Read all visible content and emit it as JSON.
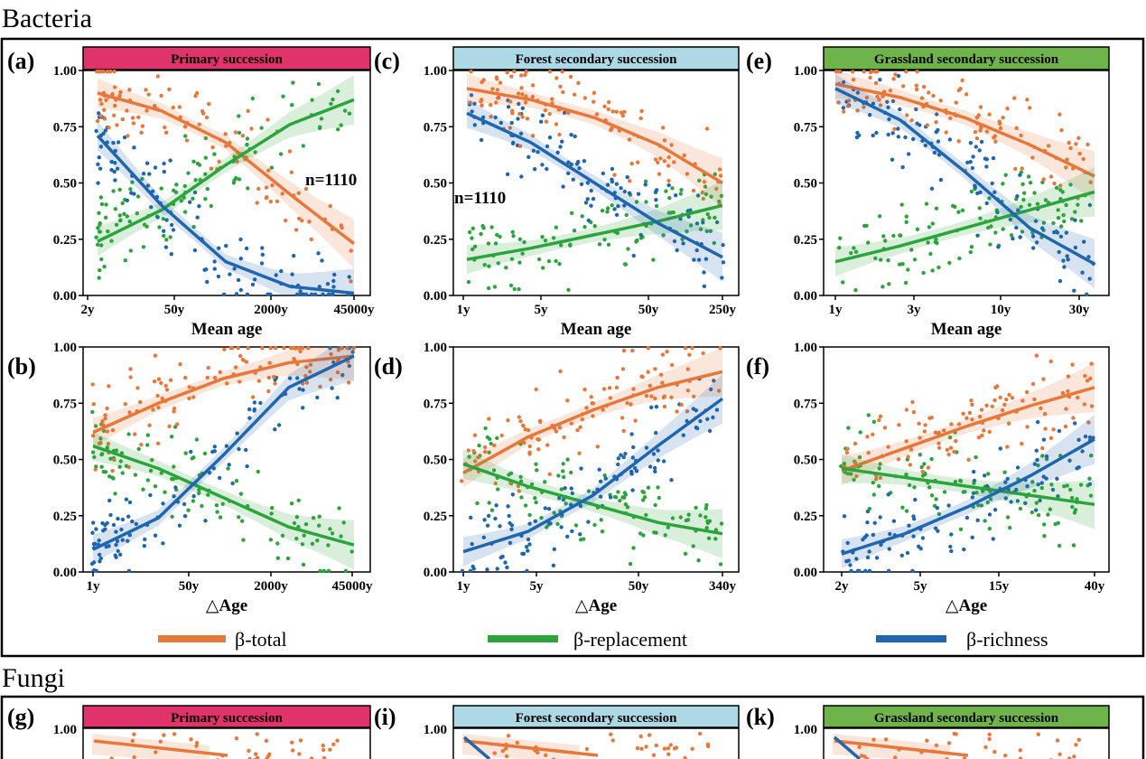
{
  "sections": {
    "bacteria": "Bacteria",
    "fungi": "Fungi"
  },
  "colors": {
    "total": "#e8773a",
    "replacement": "#2ca43c",
    "richness": "#1f66ae",
    "primary": "#e0336b",
    "forest": "#add8e6",
    "grassland": "#6fb44a"
  },
  "legend": [
    {
      "key": "total",
      "label": "β-total"
    },
    {
      "key": "replacement",
      "label": "β-replacement"
    },
    {
      "key": "richness",
      "label": "β-richness"
    }
  ],
  "chart_data": [
    {
      "type": "scatter",
      "panel": "(a)",
      "strip": "Primary succession",
      "strip_color": "primary",
      "xlabel": "Mean age",
      "ylabel": "",
      "annotation": "n=1110",
      "x_scale": "log",
      "xticks": [
        "2y",
        "50y",
        "2000y",
        "45000y"
      ],
      "xtick_values": [
        2,
        50,
        2000,
        45000
      ],
      "ylim": [
        0,
        1
      ],
      "yticks": [
        "0.00",
        "0.25",
        "0.50",
        "0.75",
        "1.00"
      ],
      "fit_range": [
        2.5,
        45000
      ],
      "series": [
        {
          "key": "total",
          "fit": [
            0.9,
            0.82,
            0.68,
            0.45,
            0.23
          ]
        },
        {
          "key": "replacement",
          "fit": [
            0.24,
            0.38,
            0.58,
            0.76,
            0.87
          ]
        },
        {
          "key": "richness",
          "fit": [
            0.71,
            0.4,
            0.15,
            0.04,
            0.01
          ]
        }
      ]
    },
    {
      "type": "scatter",
      "panel": "(c)",
      "strip": "Forest secondary succession",
      "strip_color": "forest",
      "xlabel": "Mean age",
      "ylabel": "",
      "annotation": "n=1110",
      "x_scale": "log",
      "xticks": [
        "1y",
        "5y",
        "50y",
        "250y"
      ],
      "xtick_values": [
        1,
        5,
        50,
        250
      ],
      "ylim": [
        0,
        1
      ],
      "yticks": [
        "0.00",
        "0.25",
        "0.50",
        "0.75",
        "1.00"
      ],
      "fit_range": [
        1,
        250
      ],
      "series": [
        {
          "key": "total",
          "fit": [
            0.92,
            0.87,
            0.79,
            0.67,
            0.5
          ]
        },
        {
          "key": "replacement",
          "fit": [
            0.16,
            0.21,
            0.27,
            0.33,
            0.4
          ]
        },
        {
          "key": "richness",
          "fit": [
            0.81,
            0.68,
            0.5,
            0.32,
            0.17
          ]
        }
      ]
    },
    {
      "type": "scatter",
      "panel": "(e)",
      "strip": "Grassland secondary succession",
      "strip_color": "grassland",
      "xlabel": "Mean age",
      "ylabel": "",
      "annotation": "",
      "x_scale": "log",
      "xticks": [
        "1y",
        "3y",
        "10y",
        "30y"
      ],
      "xtick_values": [
        1,
        3,
        10,
        30
      ],
      "ylim": [
        0,
        1
      ],
      "yticks": [
        "0.00",
        "0.25",
        "0.50",
        "0.75",
        "1.00"
      ],
      "fit_range": [
        1,
        32
      ],
      "series": [
        {
          "key": "total",
          "fit": [
            0.94,
            0.88,
            0.79,
            0.67,
            0.53
          ]
        },
        {
          "key": "replacement",
          "fit": [
            0.15,
            0.22,
            0.3,
            0.38,
            0.46
          ]
        },
        {
          "key": "richness",
          "fit": [
            0.92,
            0.78,
            0.55,
            0.3,
            0.14
          ]
        }
      ]
    },
    {
      "type": "scatter",
      "panel": "(b)",
      "strip": "",
      "xlabel": "△Age",
      "ylabel": "",
      "x_scale": "log",
      "xticks": [
        "1y",
        "50y",
        "2000y",
        "45000y"
      ],
      "xtick_values": [
        1,
        50,
        2000,
        45000
      ],
      "ylim": [
        0,
        1
      ],
      "yticks": [
        "0.00",
        "0.25",
        "0.50",
        "0.75",
        "1.00"
      ],
      "fit_range": [
        1,
        45000
      ],
      "series": [
        {
          "key": "total",
          "fit": [
            0.62,
            0.75,
            0.86,
            0.93,
            0.96
          ]
        },
        {
          "key": "replacement",
          "fit": [
            0.56,
            0.46,
            0.33,
            0.2,
            0.12
          ]
        },
        {
          "key": "richness",
          "fit": [
            0.1,
            0.24,
            0.52,
            0.82,
            0.96
          ]
        }
      ]
    },
    {
      "type": "scatter",
      "panel": "(d)",
      "strip": "",
      "xlabel": "△Age",
      "ylabel": "",
      "x_scale": "log",
      "xticks": [
        "1y",
        "5y",
        "50y",
        "340y"
      ],
      "xtick_values": [
        1,
        5,
        50,
        340
      ],
      "ylim": [
        0,
        1
      ],
      "yticks": [
        "0.00",
        "0.25",
        "0.50",
        "0.75",
        "1.00"
      ],
      "fit_range": [
        1,
        340
      ],
      "series": [
        {
          "key": "total",
          "fit": [
            0.44,
            0.6,
            0.72,
            0.82,
            0.89
          ]
        },
        {
          "key": "replacement",
          "fit": [
            0.48,
            0.38,
            0.3,
            0.22,
            0.17
          ]
        },
        {
          "key": "richness",
          "fit": [
            0.09,
            0.18,
            0.34,
            0.56,
            0.77
          ]
        }
      ]
    },
    {
      "type": "scatter",
      "panel": "(f)",
      "strip": "",
      "xlabel": "△Age",
      "ylabel": "",
      "x_scale": "log",
      "xticks": [
        "2y",
        "5y",
        "15y",
        "40y"
      ],
      "xtick_values": [
        2,
        5,
        15,
        40
      ],
      "ylim": [
        0,
        1
      ],
      "yticks": [
        "0.00",
        "0.25",
        "0.50",
        "0.75",
        "1.00"
      ],
      "fit_range": [
        2,
        40
      ],
      "series": [
        {
          "key": "total",
          "fit": [
            0.45,
            0.55,
            0.65,
            0.74,
            0.82
          ]
        },
        {
          "key": "replacement",
          "fit": [
            0.46,
            0.42,
            0.38,
            0.34,
            0.3
          ]
        },
        {
          "key": "richness",
          "fit": [
            0.08,
            0.17,
            0.29,
            0.43,
            0.59
          ]
        }
      ]
    }
  ],
  "fungi_panels": [
    {
      "panel": "(g)",
      "strip": "Primary succession",
      "strip_color": "primary",
      "ytop": "1.00"
    },
    {
      "panel": "(i)",
      "strip": "Forest secondary succession",
      "strip_color": "forest",
      "ytop": "1.00"
    },
    {
      "panel": "(k)",
      "strip": "Grassland secondary succession",
      "strip_color": "grassland",
      "ytop": "1.00"
    }
  ]
}
